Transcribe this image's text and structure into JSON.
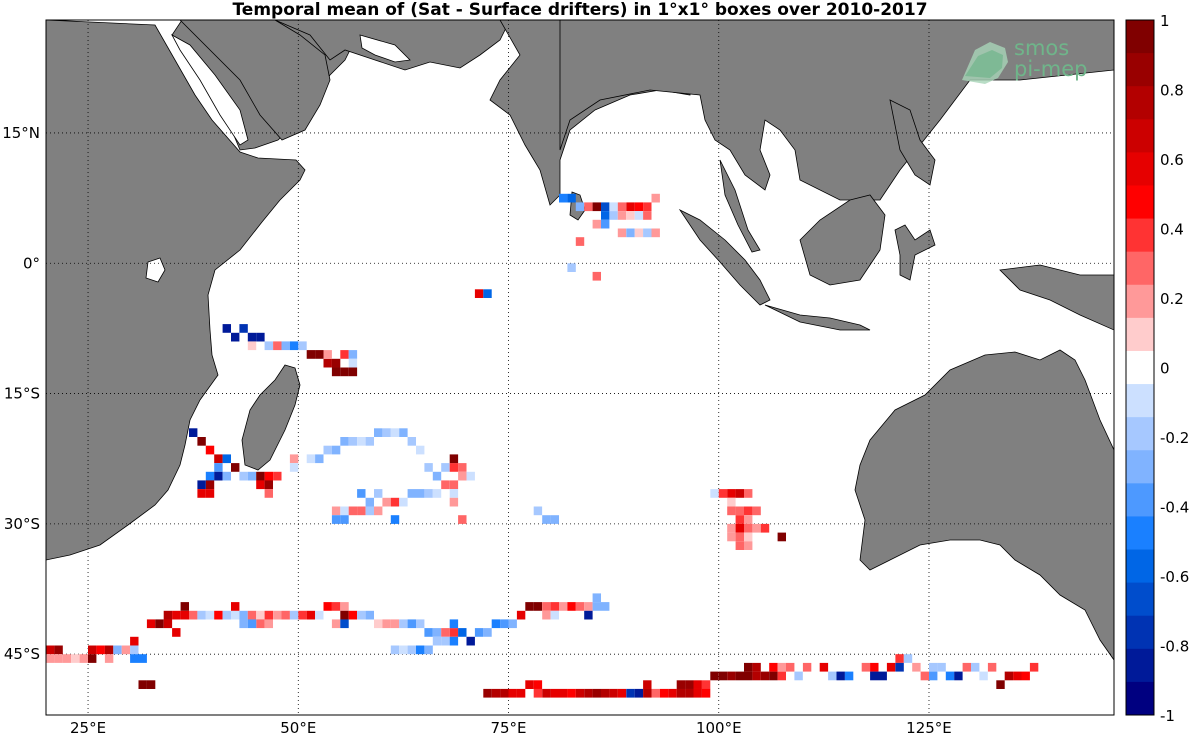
{
  "title": "Temporal mean of (Sat - Surface drifters) in 1°x1° boxes over 2010-2017",
  "logo": {
    "line1": "smos",
    "line2": "pi-mep",
    "color": "#6fb58a"
  },
  "map": {
    "lon_range": [
      20,
      147
    ],
    "lat_range": [
      -52,
      28
    ],
    "lon_ticks": [
      {
        "value": 25,
        "label": "25°E"
      },
      {
        "value": 50,
        "label": "50°E"
      },
      {
        "value": 75,
        "label": "75°E"
      },
      {
        "value": 100,
        "label": "100°E"
      },
      {
        "value": 125,
        "label": "125°E"
      }
    ],
    "lat_ticks": [
      {
        "value": 15,
        "label": "15°N"
      },
      {
        "value": 0,
        "label": "0°"
      },
      {
        "value": -15,
        "label": "15°S"
      },
      {
        "value": -30,
        "label": "30°S"
      },
      {
        "value": -45,
        "label": "45°S"
      }
    ],
    "land_color": "#808080",
    "ocean_color": "#ffffff",
    "grid": "dotted"
  },
  "colorbar": {
    "range": [
      -1,
      1
    ],
    "step": 0.1,
    "colors": [
      "#000080",
      "#001a99",
      "#0033b3",
      "#004dcc",
      "#0066e6",
      "#1a80ff",
      "#4d99ff",
      "#80b3ff",
      "#a6c8ff",
      "#cce0ff",
      "#ffffff",
      "#ffcccc",
      "#ff9999",
      "#ff6666",
      "#ff3333",
      "#ff0000",
      "#e60000",
      "#cc0000",
      "#b30000",
      "#990000",
      "#800000"
    ],
    "tick_labels": [
      "1",
      "0.8",
      "0.6",
      "0.4",
      "0.2",
      "0",
      "-0.2",
      "-0.4",
      "-0.6",
      "-0.8",
      "-1"
    ]
  },
  "boxes": [
    [
      81,
      7,
      -0.5
    ],
    [
      82,
      7,
      -0.6
    ],
    [
      83,
      6,
      -0.3
    ],
    [
      84,
      6,
      0.3
    ],
    [
      85,
      6,
      1.0
    ],
    [
      86,
      6,
      -0.7
    ],
    [
      87,
      6,
      -0.1
    ],
    [
      88,
      6,
      0.3
    ],
    [
      89,
      6,
      0.6
    ],
    [
      90,
      6,
      0.5
    ],
    [
      91,
      6,
      0.4
    ],
    [
      92,
      7,
      0.2
    ],
    [
      86,
      5,
      -0.6
    ],
    [
      87,
      5,
      -0.2
    ],
    [
      88,
      5,
      0.2
    ],
    [
      89,
      5,
      0.1
    ],
    [
      90,
      5,
      -0.1
    ],
    [
      91,
      5,
      0.3
    ],
    [
      85,
      4,
      0.2
    ],
    [
      86,
      4,
      -0.4
    ],
    [
      88,
      3,
      0.2
    ],
    [
      89,
      3,
      -0.3
    ],
    [
      90,
      3,
      0.1
    ],
    [
      91,
      3,
      -0.2
    ],
    [
      92,
      3,
      0.2
    ],
    [
      83,
      2,
      0.3
    ],
    [
      82,
      -1,
      -0.2
    ],
    [
      85,
      -2,
      0.3
    ],
    [
      71,
      -4,
      0.6
    ],
    [
      72,
      -4,
      -0.6
    ],
    [
      41,
      -8,
      -0.9
    ],
    [
      42,
      -9,
      -0.9
    ],
    [
      43,
      -8,
      -0.8
    ],
    [
      44,
      -9,
      -0.9
    ],
    [
      45,
      -9,
      -0.9
    ],
    [
      44,
      -10,
      0.1
    ],
    [
      46,
      -10,
      -0.2
    ],
    [
      47,
      -10,
      0.3
    ],
    [
      48,
      -10,
      -0.3
    ],
    [
      49,
      -10,
      -0.5
    ],
    [
      50,
      -10,
      -0.2
    ],
    [
      51,
      -11,
      1.0
    ],
    [
      52,
      -11,
      1.0
    ],
    [
      53,
      -12,
      0.8
    ],
    [
      54,
      -12,
      0.9
    ],
    [
      55,
      -11,
      0.4
    ],
    [
      56,
      -11,
      -0.3
    ],
    [
      56,
      -12,
      -0.1
    ],
    [
      54,
      -13,
      1.0
    ],
    [
      55,
      -13,
      1.0
    ],
    [
      56,
      -13,
      1.0
    ],
    [
      53,
      -11,
      0.2
    ],
    [
      37,
      -20,
      -0.9
    ],
    [
      38,
      -21,
      1.0
    ],
    [
      39,
      -22,
      0.5
    ],
    [
      40,
      -23,
      0.7
    ],
    [
      41,
      -23,
      -0.6
    ],
    [
      40,
      -24,
      -0.4
    ],
    [
      42,
      -24,
      1.0
    ],
    [
      39,
      -25,
      -0.5
    ],
    [
      40,
      -25,
      -0.9
    ],
    [
      41,
      -25,
      -0.3
    ],
    [
      39,
      -26,
      0.9
    ],
    [
      38,
      -26,
      -0.9
    ],
    [
      43,
      -25,
      -0.2
    ],
    [
      44,
      -25,
      -0.3
    ],
    [
      45,
      -25,
      1.0
    ],
    [
      46,
      -25,
      0.5
    ],
    [
      47,
      -25,
      0.4
    ],
    [
      45,
      -26,
      0.6
    ],
    [
      46,
      -26,
      0.9
    ],
    [
      38,
      -27,
      0.6
    ],
    [
      39,
      -27,
      0.6
    ],
    [
      46,
      -27,
      0.3
    ],
    [
      53,
      -22,
      -0.2
    ],
    [
      54,
      -22,
      -0.3
    ],
    [
      55,
      -21,
      -0.3
    ],
    [
      56,
      -21,
      -0.2
    ],
    [
      57,
      -21,
      -0.1
    ],
    [
      58,
      -21,
      -0.2
    ],
    [
      59,
      -20,
      -0.3
    ],
    [
      60,
      -20,
      -0.2
    ],
    [
      61,
      -20,
      -0.1
    ],
    [
      62,
      -20,
      -0.3
    ],
    [
      63,
      -21,
      -0.2
    ],
    [
      64,
      -22,
      -0.1
    ],
    [
      51,
      -23,
      -0.1
    ],
    [
      52,
      -23,
      -0.3
    ],
    [
      49,
      -23,
      0.2
    ],
    [
      49,
      -24,
      -0.1
    ],
    [
      65,
      -24,
      -0.2
    ],
    [
      66,
      -25,
      -0.3
    ],
    [
      67,
      -24,
      -0.2
    ],
    [
      68,
      -24,
      0.4
    ],
    [
      68,
      -23,
      1.0
    ],
    [
      69,
      -24,
      0.3
    ],
    [
      69,
      -25,
      0.2
    ],
    [
      70,
      -25,
      -0.1
    ],
    [
      57,
      -27,
      -0.4
    ],
    [
      58,
      -28,
      -0.3
    ],
    [
      59,
      -27,
      -0.2
    ],
    [
      60,
      -28,
      0.2
    ],
    [
      61,
      -28,
      0.4
    ],
    [
      62,
      -28,
      -0.1
    ],
    [
      63,
      -27,
      -0.3
    ],
    [
      64,
      -27,
      -0.3
    ],
    [
      65,
      -27,
      -0.2
    ],
    [
      66,
      -27,
      -0.1
    ],
    [
      67,
      -26,
      0.3
    ],
    [
      68,
      -26,
      0.3
    ],
    [
      68,
      -27,
      -0.1
    ],
    [
      68,
      -28,
      0.2
    ],
    [
      54,
      -29,
      0.2
    ],
    [
      55,
      -29,
      -0.1
    ],
    [
      54,
      -30,
      -0.4
    ],
    [
      55,
      -30,
      -0.4
    ],
    [
      56,
      -29,
      0.3
    ],
    [
      57,
      -29,
      0.3
    ],
    [
      58,
      -29,
      -0.2
    ],
    [
      59,
      -29,
      0.2
    ],
    [
      61,
      -30,
      -0.5
    ],
    [
      69,
      -30,
      0.3
    ],
    [
      78,
      -29,
      -0.2
    ],
    [
      79,
      -30,
      -0.3
    ],
    [
      80,
      -30,
      -0.3
    ],
    [
      99,
      -27,
      -0.1
    ],
    [
      100,
      -27,
      0.4
    ],
    [
      101,
      -27,
      0.6
    ],
    [
      102,
      -27,
      0.7
    ],
    [
      103,
      -27,
      0.3
    ],
    [
      101,
      -28,
      0.1
    ],
    [
      101,
      -29,
      0.3
    ],
    [
      102,
      -29,
      0.3
    ],
    [
      103,
      -29,
      0.4
    ],
    [
      104,
      -29,
      0.3
    ],
    [
      102,
      -30,
      0.4
    ],
    [
      103,
      -30,
      0.2
    ],
    [
      101,
      -31,
      0.2
    ],
    [
      102,
      -31,
      0.6
    ],
    [
      103,
      -31,
      0.3
    ],
    [
      104,
      -31,
      0.2
    ],
    [
      105,
      -31,
      0.4
    ],
    [
      101,
      -32,
      0.2
    ],
    [
      102,
      -32,
      0.3
    ],
    [
      103,
      -32,
      0.1
    ],
    [
      107,
      -32,
      1.0
    ],
    [
      102,
      -33,
      0.3
    ],
    [
      103,
      -33,
      0.2
    ],
    [
      20,
      -45,
      0.7
    ],
    [
      21,
      -45,
      0.9
    ],
    [
      20,
      -46,
      0.2
    ],
    [
      21,
      -46,
      0.2
    ],
    [
      22,
      -46,
      0.2
    ],
    [
      23,
      -46,
      0.1
    ],
    [
      24,
      -46,
      0.2
    ],
    [
      25,
      -46,
      1.0
    ],
    [
      25,
      -45,
      0.7
    ],
    [
      26,
      -45,
      0.5
    ],
    [
      27,
      -45,
      0.8
    ],
    [
      27,
      -46,
      0.2
    ],
    [
      28,
      -45,
      -0.3
    ],
    [
      29,
      -45,
      0.2
    ],
    [
      30,
      -44,
      0.6
    ],
    [
      30,
      -45,
      -0.2
    ],
    [
      30,
      -46,
      -0.5
    ],
    [
      31,
      -46,
      -0.5
    ],
    [
      32,
      -42,
      0.6
    ],
    [
      33,
      -42,
      1.0
    ],
    [
      34,
      -41,
      0.8
    ],
    [
      35,
      -41,
      0.6
    ],
    [
      36,
      -41,
      0.6
    ],
    [
      34,
      -42,
      0.7
    ],
    [
      36,
      -40,
      1.0
    ],
    [
      35,
      -43,
      0.6
    ],
    [
      37,
      -41,
      0.3
    ],
    [
      38,
      -41,
      -0.2
    ],
    [
      39,
      -41,
      -0.1
    ],
    [
      40,
      -41,
      0.5
    ],
    [
      41,
      -41,
      -0.2
    ],
    [
      42,
      -41,
      -0.1
    ],
    [
      43,
      -41,
      -0.3
    ],
    [
      44,
      -41,
      0.3
    ],
    [
      42,
      -40,
      0.6
    ],
    [
      45,
      -41,
      0.1
    ],
    [
      46,
      -41,
      0.4
    ],
    [
      47,
      -41,
      0.2
    ],
    [
      48,
      -41,
      0.3
    ],
    [
      49,
      -41,
      -0.2
    ],
    [
      50,
      -41,
      0.4
    ],
    [
      51,
      -41,
      0.6
    ],
    [
      52,
      -41,
      -0.1
    ],
    [
      45,
      -42,
      0.3
    ],
    [
      46,
      -42,
      0.2
    ],
    [
      43,
      -42,
      -0.3
    ],
    [
      44,
      -42,
      -0.4
    ],
    [
      53,
      -40,
      0.5
    ],
    [
      54,
      -40,
      0.4
    ],
    [
      55,
      -40,
      0.2
    ],
    [
      55,
      -41,
      1.0
    ],
    [
      56,
      -41,
      0.5
    ],
    [
      57,
      -41,
      -0.2
    ],
    [
      58,
      -41,
      -0.3
    ],
    [
      54,
      -42,
      0.2
    ],
    [
      55,
      -42,
      -0.7
    ],
    [
      59,
      -42,
      0.1
    ],
    [
      60,
      -42,
      0.2
    ],
    [
      61,
      -42,
      0.2
    ],
    [
      62,
      -42,
      -0.2
    ],
    [
      63,
      -42,
      -0.4
    ],
    [
      64,
      -42,
      -0.2
    ],
    [
      65,
      -43,
      -0.4
    ],
    [
      66,
      -43,
      -0.3
    ],
    [
      67,
      -43,
      0.3
    ],
    [
      68,
      -43,
      0.4
    ],
    [
      68,
      -42,
      -0.5
    ],
    [
      69,
      -43,
      -0.6
    ],
    [
      70,
      -44,
      -0.9
    ],
    [
      71,
      -43,
      -0.4
    ],
    [
      72,
      -43,
      -0.3
    ],
    [
      73,
      -42,
      -0.5
    ],
    [
      74,
      -42,
      -0.4
    ],
    [
      75,
      -42,
      -0.3
    ],
    [
      61,
      -45,
      -0.2
    ],
    [
      62,
      -45,
      -0.1
    ],
    [
      63,
      -45,
      -0.2
    ],
    [
      64,
      -45,
      -0.5
    ],
    [
      65,
      -45,
      -0.3
    ],
    [
      66,
      -44,
      -0.2
    ],
    [
      67,
      -44,
      -0.2
    ],
    [
      68,
      -44,
      -0.5
    ],
    [
      76,
      -41,
      0.6
    ],
    [
      77,
      -40,
      1.0
    ],
    [
      78,
      -40,
      1.0
    ],
    [
      79,
      -40,
      0.3
    ],
    [
      80,
      -40,
      0.4
    ],
    [
      81,
      -40,
      0.2
    ],
    [
      82,
      -40,
      0.5
    ],
    [
      83,
      -40,
      0.3
    ],
    [
      84,
      -40,
      0.2
    ],
    [
      85,
      -40,
      -0.3
    ],
    [
      86,
      -40,
      -0.3
    ],
    [
      85,
      -39,
      -0.3
    ],
    [
      79,
      -41,
      0.2
    ],
    [
      80,
      -41,
      -0.1
    ],
    [
      84,
      -41,
      -0.9
    ],
    [
      72,
      -50,
      0.9
    ],
    [
      73,
      -50,
      0.8
    ],
    [
      74,
      -50,
      0.8
    ],
    [
      75,
      -50,
      0.6
    ],
    [
      76,
      -50,
      0.6
    ],
    [
      77,
      -49,
      0.6
    ],
    [
      78,
      -49,
      0.5
    ],
    [
      78,
      -50,
      0.4
    ],
    [
      79,
      -50,
      0.7
    ],
    [
      80,
      -50,
      0.6
    ],
    [
      81,
      -50,
      0.6
    ],
    [
      82,
      -50,
      0.5
    ],
    [
      83,
      -50,
      0.7
    ],
    [
      84,
      -50,
      0.8
    ],
    [
      85,
      -50,
      0.9
    ],
    [
      86,
      -50,
      0.8
    ],
    [
      87,
      -50,
      0.7
    ],
    [
      88,
      -50,
      0.6
    ],
    [
      89,
      -50,
      -0.8
    ],
    [
      90,
      -50,
      -0.9
    ],
    [
      91,
      -50,
      0.8
    ],
    [
      92,
      -50,
      0.3
    ],
    [
      93,
      -50,
      0.5
    ],
    [
      94,
      -50,
      0.6
    ],
    [
      95,
      -50,
      0.8
    ],
    [
      91,
      -49,
      0.7
    ],
    [
      95,
      -49,
      0.9
    ],
    [
      96,
      -49,
      0.9
    ],
    [
      97,
      -49,
      0.6
    ],
    [
      98,
      -49,
      0.4
    ],
    [
      99,
      -48,
      1.0
    ],
    [
      100,
      -48,
      1.0
    ],
    [
      101,
      -48,
      0.9
    ],
    [
      102,
      -48,
      1.0
    ],
    [
      103,
      -48,
      1.0
    ],
    [
      104,
      -48,
      0.8
    ],
    [
      103,
      -47,
      1.0
    ],
    [
      104,
      -47,
      0.8
    ],
    [
      96,
      -50,
      0.8
    ],
    [
      97,
      -50,
      0.6
    ],
    [
      98,
      -50,
      0.5
    ],
    [
      105,
      -48,
      0.9
    ],
    [
      106,
      -48,
      1.0
    ],
    [
      107,
      -48,
      0.4
    ],
    [
      106,
      -47,
      0.5
    ],
    [
      107,
      -47,
      0.2
    ],
    [
      108,
      -47,
      0.3
    ],
    [
      109,
      -48,
      -0.2
    ],
    [
      110,
      -47,
      0.3
    ],
    [
      112,
      -47,
      0.6
    ],
    [
      113,
      -48,
      -0.2
    ],
    [
      114,
      -48,
      -0.9
    ],
    [
      115,
      -48,
      -0.5
    ],
    [
      117,
      -47,
      0.3
    ],
    [
      118,
      -47,
      0.5
    ],
    [
      118,
      -48,
      -0.9
    ],
    [
      119,
      -48,
      -0.9
    ],
    [
      120,
      -47,
      0.6
    ],
    [
      121,
      -46,
      0.4
    ],
    [
      121,
      -47,
      -0.8
    ],
    [
      122,
      -46,
      -0.2
    ],
    [
      123,
      -47,
      0.2
    ],
    [
      124,
      -48,
      0.3
    ],
    [
      125,
      -47,
      -0.2
    ],
    [
      125,
      -48,
      -0.4
    ],
    [
      126,
      -47,
      -0.2
    ],
    [
      127,
      -48,
      -0.5
    ],
    [
      128,
      -48,
      -0.9
    ],
    [
      129,
      -47,
      0.3
    ],
    [
      130,
      -47,
      -0.2
    ],
    [
      131,
      -48,
      -0.1
    ],
    [
      132,
      -47,
      0.3
    ],
    [
      133,
      -49,
      1.0
    ],
    [
      134,
      -48,
      0.8
    ],
    [
      135,
      -48,
      0.6
    ],
    [
      136,
      -48,
      0.5
    ],
    [
      137,
      -47,
      0.4
    ],
    [
      31,
      -49,
      1.0
    ],
    [
      32,
      -49,
      1.0
    ]
  ]
}
